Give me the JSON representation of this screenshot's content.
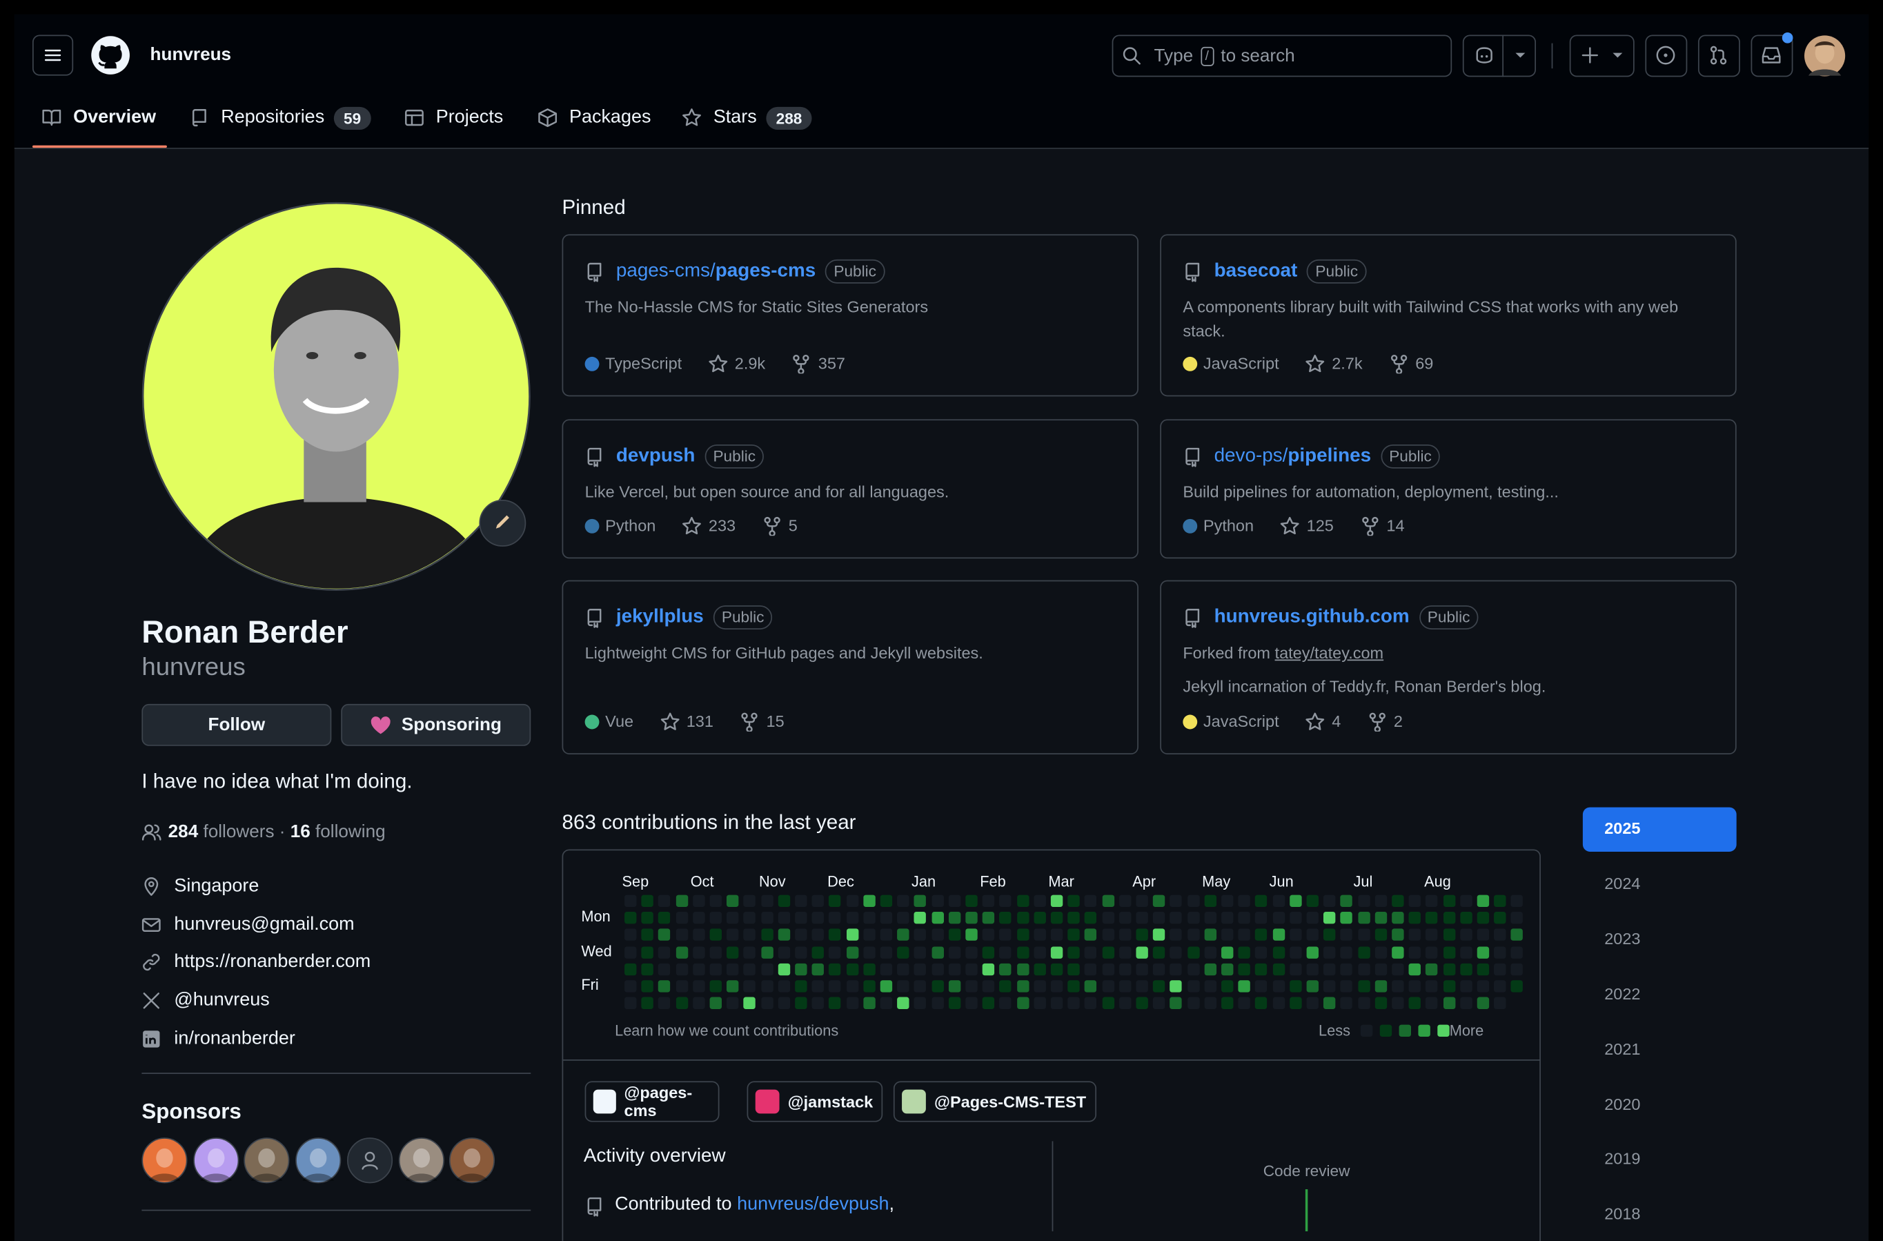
{
  "header": {
    "username": "hunvreus",
    "search_before": "Type",
    "search_key": "/",
    "search_after": "to search"
  },
  "tabs": [
    {
      "label": "Overview"
    },
    {
      "label": "Repositories",
      "count": 59
    },
    {
      "label": "Projects"
    },
    {
      "label": "Packages"
    },
    {
      "label": "Stars",
      "count": 288
    }
  ],
  "profile": {
    "name": "Ronan Berder",
    "login": "hunvreus",
    "follow": "Follow",
    "sponsoring": "Sponsoring",
    "bio": "I have no idea what I'm doing.",
    "followers": 284,
    "followers_label": "followers",
    "separator": "·",
    "following": 16,
    "following_label": "following",
    "details": [
      "Singapore",
      "hunvreus@gmail.com",
      "https://ronanberder.com",
      "@hunvreus",
      "in/ronanberder"
    ]
  },
  "sponsors": {
    "title": "Sponsors"
  },
  "pinned": {
    "title": "Pinned",
    "repos": [
      {
        "owner": "pages-cms/",
        "name": "pages-cms",
        "visibility": "Public",
        "description": "The No-Hassle CMS for Static Sites Generators",
        "language": "TypeScript",
        "lang_color": "#3178c6",
        "stars": "2.9k",
        "forks": 357
      },
      {
        "name": "basecoat",
        "visibility": "Public",
        "description": "A components library built with Tailwind CSS that works with any web stack.",
        "language": "JavaScript",
        "lang_color": "#f1e05a",
        "stars": "2.7k",
        "forks": 69
      },
      {
        "name": "devpush",
        "visibility": "Public",
        "description": "Like Vercel, but open source and for all languages.",
        "language": "Python",
        "lang_color": "#3572a5",
        "stars": 233,
        "forks": 5
      },
      {
        "owner": "devo-ps/",
        "name": "pipelines",
        "visibility": "Public",
        "description": "Build pipelines for automation, deployment, testing...",
        "language": "Python",
        "lang_color": "#3572a5",
        "stars": 125,
        "forks": 14
      },
      {
        "name": "jekyllplus",
        "visibility": "Public",
        "description": "Lightweight CMS for GitHub pages and Jekyll websites.",
        "language": "Vue",
        "lang_color": "#41b883",
        "stars": 131,
        "forks": 15
      },
      {
        "name": "hunvreus.github.com",
        "visibility": "Public",
        "forked_label": "Forked from",
        "forked_from": "tatey/tatey.com",
        "description": "Jekyll incarnation of Teddy.fr, Ronan Berder's blog.",
        "language": "JavaScript",
        "lang_color": "#f1e05a",
        "stars": 4,
        "forks": 2
      }
    ]
  },
  "contributions": {
    "title": "863 contributions in the last year",
    "months": [
      "Sep",
      "Oct",
      "Nov",
      "Dec",
      "Jan",
      "Feb",
      "Mar",
      "Apr",
      "May",
      "Jun",
      "Jul",
      "Aug"
    ],
    "days": [
      "Mon",
      "Wed",
      "Fri"
    ],
    "learn": "Learn how we count contributions",
    "less": "Less",
    "more": "More",
    "orgs": [
      "@pages-cms",
      "@jamstack",
      "@Pages-CMS-TEST"
    ],
    "activity_title": "Activity overview",
    "contributed_prefix": "Contributed to",
    "contributed_repo": "hunvreus/devpush",
    "contributed_suffix": ",",
    "code_review": "Code review"
  },
  "years": {
    "selected": 0,
    "list": [
      "2025",
      "2024",
      "2023",
      "2022",
      "2021",
      "2020",
      "2019",
      "2018"
    ]
  }
}
